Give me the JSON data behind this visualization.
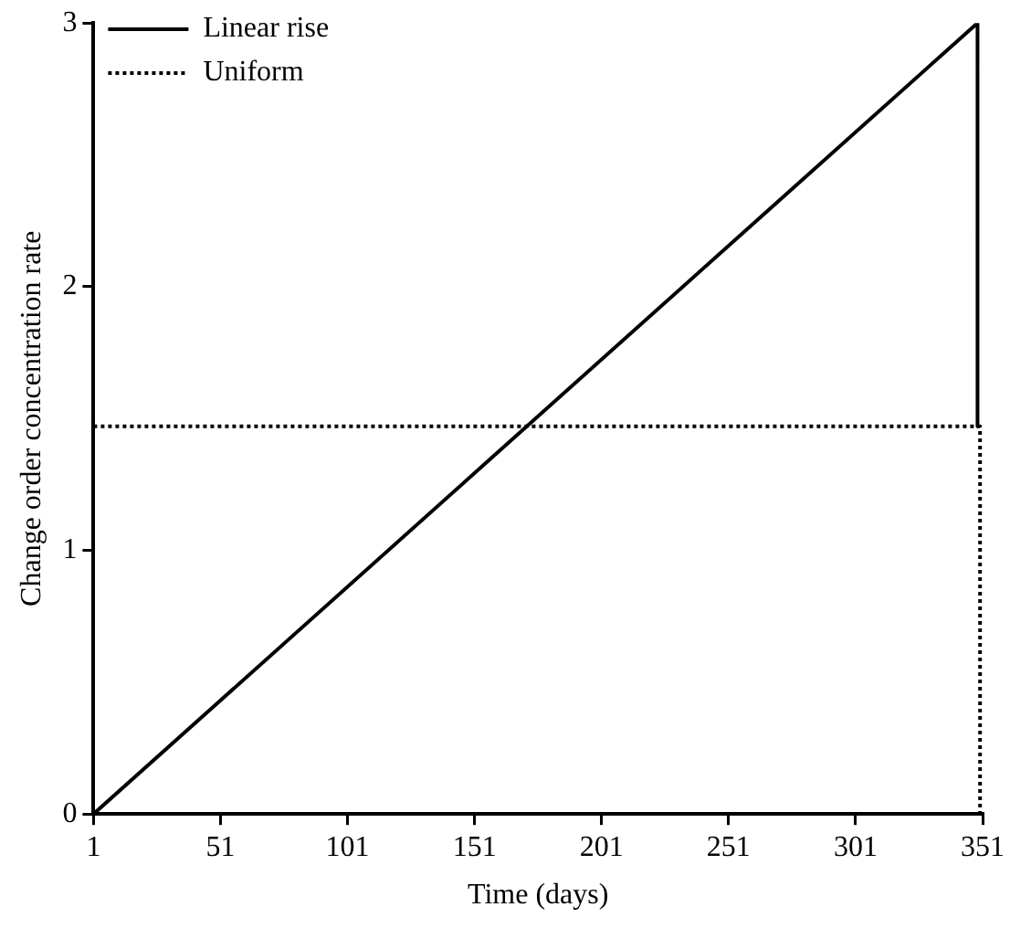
{
  "chart_data": {
    "type": "line",
    "xlabel": "Time (days)",
    "ylabel": "Change order concentration rate",
    "xlim": [
      1,
      351
    ],
    "xticks": [
      1,
      51,
      101,
      151,
      201,
      251,
      301,
      351
    ],
    "ylim": [
      0,
      3
    ],
    "yticks": [
      0,
      1,
      2,
      3
    ],
    "grid": false,
    "legend": "top left",
    "marker": "none",
    "series": [
      {
        "name": "Linear rise",
        "color": "#000000",
        "line_style": "solid",
        "x": [
          1,
          349,
          349
        ],
        "values": [
          0,
          3,
          1.47
        ]
      },
      {
        "name": "Uniform",
        "color": "#000000",
        "line_style": "dotted",
        "x": [
          1,
          350,
          350,
          351
        ],
        "values": [
          1.47,
          1.47,
          0,
          0
        ]
      }
    ]
  }
}
